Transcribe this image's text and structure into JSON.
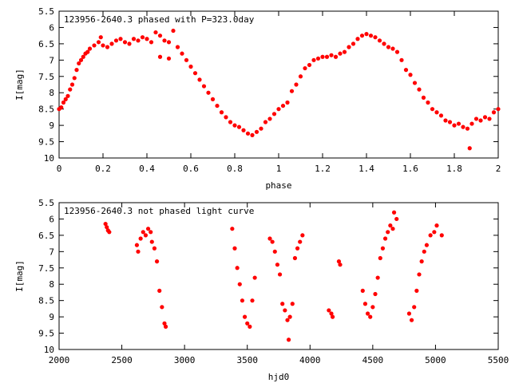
{
  "chart_data": [
    {
      "type": "scatter",
      "title": "123956-2640.3 phased with P=323.0day",
      "xlabel": "phase",
      "ylabel": "I[mag]",
      "xlim": [
        0,
        2
      ],
      "ylim": [
        10,
        5.5
      ],
      "y_inverted": true,
      "x_ticks": [
        0,
        0.2,
        0.4,
        0.6,
        0.8,
        1,
        1.2,
        1.4,
        1.6,
        1.8,
        2
      ],
      "x_tick_labels": [
        "0",
        "0.2",
        "0.4",
        "0.6",
        "0.8",
        "1",
        "1.2",
        "1.4",
        "1.6",
        "1.8",
        "2"
      ],
      "y_ticks": [
        5.5,
        6,
        6.5,
        7,
        7.5,
        8,
        8.5,
        9,
        9.5,
        10
      ],
      "y_tick_labels": [
        "5.5",
        "6",
        "6.5",
        "7",
        "7.5",
        "8",
        "8.5",
        "9",
        "9.5",
        "10"
      ],
      "grid": false,
      "marker_color": "#ff0000",
      "series": [
        {
          "points": [
            [
              0.0,
              8.5
            ],
            [
              0.01,
              8.45
            ],
            [
              0.02,
              8.3
            ],
            [
              0.03,
              8.2
            ],
            [
              0.04,
              8.1
            ],
            [
              0.05,
              7.9
            ],
            [
              0.06,
              7.75
            ],
            [
              0.07,
              7.55
            ],
            [
              0.08,
              7.3
            ],
            [
              0.09,
              7.1
            ],
            [
              0.1,
              7.0
            ],
            [
              0.11,
              6.9
            ],
            [
              0.12,
              6.8
            ],
            [
              0.13,
              6.75
            ],
            [
              0.14,
              6.65
            ],
            [
              0.16,
              6.55
            ],
            [
              0.18,
              6.45
            ],
            [
              0.19,
              6.3
            ],
            [
              0.2,
              6.55
            ],
            [
              0.22,
              6.6
            ],
            [
              0.24,
              6.5
            ],
            [
              0.26,
              6.4
            ],
            [
              0.28,
              6.35
            ],
            [
              0.3,
              6.45
            ],
            [
              0.32,
              6.5
            ],
            [
              0.34,
              6.35
            ],
            [
              0.36,
              6.4
            ],
            [
              0.38,
              6.3
            ],
            [
              0.4,
              6.35
            ],
            [
              0.42,
              6.45
            ],
            [
              0.44,
              6.15
            ],
            [
              0.46,
              6.25
            ],
            [
              0.48,
              6.4
            ],
            [
              0.5,
              6.45
            ],
            [
              0.46,
              6.9
            ],
            [
              0.5,
              6.95
            ],
            [
              0.52,
              6.1
            ],
            [
              0.54,
              6.6
            ],
            [
              0.56,
              6.8
            ],
            [
              0.58,
              7.0
            ],
            [
              0.6,
              7.2
            ],
            [
              0.62,
              7.4
            ],
            [
              0.64,
              7.6
            ],
            [
              0.66,
              7.8
            ],
            [
              0.68,
              8.0
            ],
            [
              0.7,
              8.2
            ],
            [
              0.72,
              8.4
            ],
            [
              0.74,
              8.6
            ],
            [
              0.76,
              8.75
            ],
            [
              0.78,
              8.9
            ],
            [
              0.8,
              9.0
            ],
            [
              0.82,
              9.05
            ],
            [
              0.84,
              9.15
            ],
            [
              0.86,
              9.25
            ],
            [
              0.88,
              9.3
            ],
            [
              0.9,
              9.2
            ],
            [
              0.92,
              9.1
            ],
            [
              0.94,
              8.9
            ],
            [
              0.96,
              8.8
            ],
            [
              0.98,
              8.65
            ],
            [
              1.0,
              8.5
            ],
            [
              1.02,
              8.4
            ],
            [
              1.04,
              8.3
            ],
            [
              1.06,
              7.95
            ],
            [
              1.08,
              7.75
            ],
            [
              1.1,
              7.5
            ],
            [
              1.12,
              7.25
            ],
            [
              1.14,
              7.15
            ],
            [
              1.16,
              7.0
            ],
            [
              1.18,
              6.95
            ],
            [
              1.2,
              6.9
            ],
            [
              1.22,
              6.9
            ],
            [
              1.24,
              6.85
            ],
            [
              1.26,
              6.9
            ],
            [
              1.28,
              6.8
            ],
            [
              1.3,
              6.75
            ],
            [
              1.32,
              6.6
            ],
            [
              1.34,
              6.5
            ],
            [
              1.36,
              6.35
            ],
            [
              1.38,
              6.25
            ],
            [
              1.4,
              6.2
            ],
            [
              1.42,
              6.25
            ],
            [
              1.44,
              6.3
            ],
            [
              1.46,
              6.4
            ],
            [
              1.48,
              6.5
            ],
            [
              1.5,
              6.6
            ],
            [
              1.52,
              6.65
            ],
            [
              1.54,
              6.75
            ],
            [
              1.56,
              7.0
            ],
            [
              1.58,
              7.3
            ],
            [
              1.6,
              7.45
            ],
            [
              1.62,
              7.7
            ],
            [
              1.64,
              7.9
            ],
            [
              1.66,
              8.15
            ],
            [
              1.68,
              8.3
            ],
            [
              1.7,
              8.5
            ],
            [
              1.72,
              8.6
            ],
            [
              1.74,
              8.7
            ],
            [
              1.76,
              8.85
            ],
            [
              1.78,
              8.9
            ],
            [
              1.8,
              9.0
            ],
            [
              1.82,
              8.95
            ],
            [
              1.84,
              9.05
            ],
            [
              1.86,
              9.1
            ],
            [
              1.87,
              9.7
            ],
            [
              1.88,
              8.95
            ],
            [
              1.9,
              8.8
            ],
            [
              1.92,
              8.85
            ],
            [
              1.94,
              8.75
            ],
            [
              1.96,
              8.8
            ],
            [
              1.98,
              8.6
            ],
            [
              2.0,
              8.5
            ]
          ]
        }
      ]
    },
    {
      "type": "scatter",
      "title": "123956-2640.3 not phased light curve",
      "xlabel": "hjd0",
      "ylabel": "I[mag]",
      "xlim": [
        2000,
        5500
      ],
      "ylim": [
        10,
        5.5
      ],
      "y_inverted": true,
      "x_ticks": [
        2000,
        2500,
        3000,
        3500,
        4000,
        4500,
        5000,
        5500
      ],
      "x_tick_labels": [
        "2000",
        "2500",
        "3000",
        "3500",
        "4000",
        "4500",
        "5000",
        "5500"
      ],
      "y_ticks": [
        5.5,
        6,
        6.5,
        7,
        7.5,
        8,
        8.5,
        9,
        9.5,
        10
      ],
      "y_tick_labels": [
        "5.5",
        "6",
        "6.5",
        "7",
        "7.5",
        "8",
        "8.5",
        "9",
        "9.5",
        "10"
      ],
      "grid": false,
      "marker_color": "#ff0000",
      "series": [
        {
          "points": [
            [
              2370,
              6.15
            ],
            [
              2380,
              6.25
            ],
            [
              2390,
              6.35
            ],
            [
              2400,
              6.4
            ],
            [
              2620,
              6.8
            ],
            [
              2630,
              7.0
            ],
            [
              2650,
              6.6
            ],
            [
              2670,
              6.4
            ],
            [
              2690,
              6.5
            ],
            [
              2710,
              6.3
            ],
            [
              2730,
              6.4
            ],
            [
              2740,
              6.7
            ],
            [
              2760,
              6.9
            ],
            [
              2780,
              7.3
            ],
            [
              2800,
              8.2
            ],
            [
              2820,
              8.7
            ],
            [
              2840,
              9.2
            ],
            [
              2850,
              9.3
            ],
            [
              3380,
              6.3
            ],
            [
              3400,
              6.9
            ],
            [
              3420,
              7.5
            ],
            [
              3440,
              8.0
            ],
            [
              3460,
              8.5
            ],
            [
              3480,
              9.0
            ],
            [
              3500,
              9.2
            ],
            [
              3520,
              9.3
            ],
            [
              3540,
              8.5
            ],
            [
              3560,
              7.8
            ],
            [
              3680,
              6.6
            ],
            [
              3700,
              6.7
            ],
            [
              3720,
              7.0
            ],
            [
              3740,
              7.4
            ],
            [
              3760,
              7.7
            ],
            [
              3780,
              8.6
            ],
            [
              3800,
              8.8
            ],
            [
              3820,
              9.1
            ],
            [
              3830,
              9.7
            ],
            [
              3840,
              9.0
            ],
            [
              3860,
              8.6
            ],
            [
              3880,
              7.2
            ],
            [
              3900,
              6.9
            ],
            [
              3920,
              6.7
            ],
            [
              3940,
              6.5
            ],
            [
              4150,
              8.8
            ],
            [
              4170,
              8.9
            ],
            [
              4180,
              9.0
            ],
            [
              4230,
              7.3
            ],
            [
              4240,
              7.4
            ],
            [
              4420,
              8.2
            ],
            [
              4440,
              8.6
            ],
            [
              4460,
              8.9
            ],
            [
              4480,
              9.0
            ],
            [
              4500,
              8.7
            ],
            [
              4520,
              8.3
            ],
            [
              4540,
              7.8
            ],
            [
              4560,
              7.2
            ],
            [
              4580,
              6.9
            ],
            [
              4600,
              6.6
            ],
            [
              4620,
              6.4
            ],
            [
              4640,
              6.2
            ],
            [
              4660,
              6.3
            ],
            [
              4670,
              5.8
            ],
            [
              4690,
              6.0
            ],
            [
              4790,
              8.9
            ],
            [
              4810,
              9.1
            ],
            [
              4830,
              8.7
            ],
            [
              4850,
              8.2
            ],
            [
              4870,
              7.7
            ],
            [
              4890,
              7.3
            ],
            [
              4910,
              7.0
            ],
            [
              4930,
              6.8
            ],
            [
              4960,
              6.5
            ],
            [
              4990,
              6.4
            ],
            [
              5010,
              6.2
            ],
            [
              5050,
              6.5
            ]
          ]
        }
      ]
    }
  ]
}
